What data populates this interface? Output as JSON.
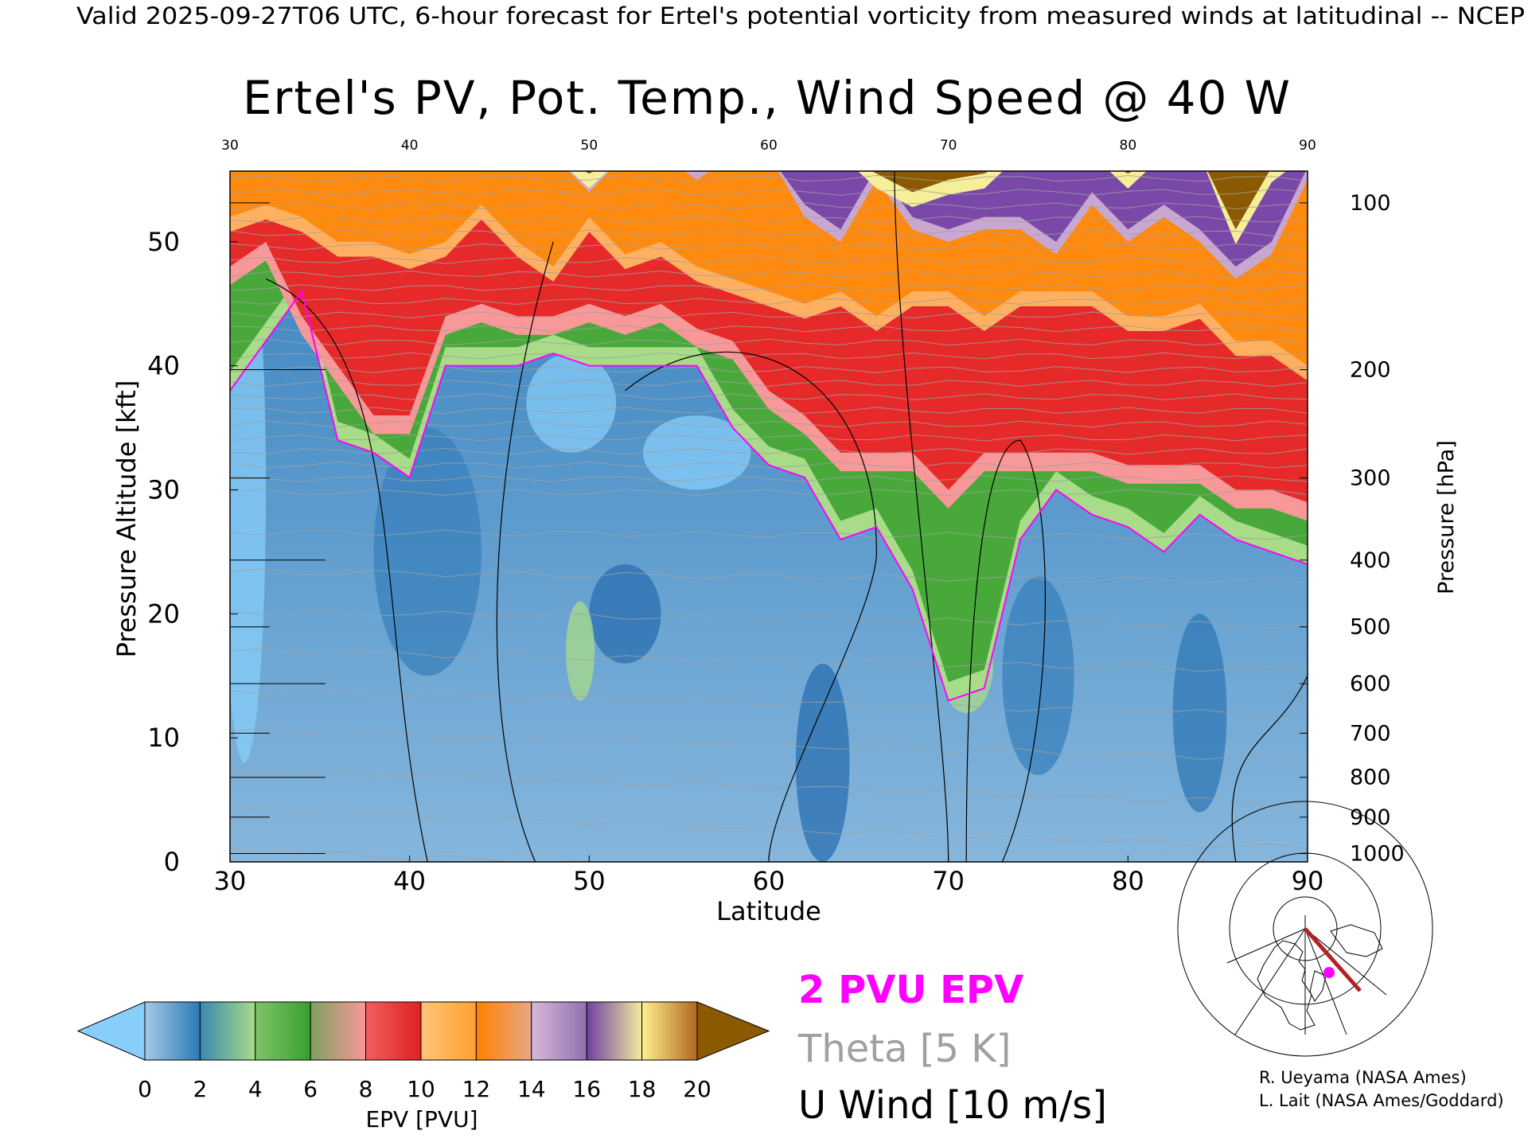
{
  "header": {
    "subtitle": "Valid 2025-09-27T06 UTC, 6-hour forecast for Ertel's potential vorticity from measured winds at latitudinal -- NCEP",
    "title": "Ertel's PV, Pot. Temp., Wind Speed @ 40 W"
  },
  "chart_data": {
    "type": "heatmap",
    "title": "Ertel's PV, Pot. Temp., Wind Speed @ 40 W",
    "xlabel": "Latitude",
    "ylabel": "Pressure Altitude [kft]",
    "y2label": "Pressure [hPa]",
    "xlim": [
      30,
      90
    ],
    "ylim": [
      0,
      55.7
    ],
    "xticks": [
      "30",
      "40",
      "50",
      "60",
      "70",
      "80",
      "90"
    ],
    "yticks": [
      "0",
      "10",
      "20",
      "30",
      "40",
      "50"
    ],
    "y2ticks": [
      "100",
      "200",
      "300",
      "400",
      "500",
      "600",
      "700",
      "800",
      "900",
      "1000"
    ],
    "colorbar": {
      "label": "EPV [PVU]",
      "ticks": [
        "0",
        "2",
        "4",
        "6",
        "8",
        "10",
        "12",
        "14",
        "16",
        "18",
        "20"
      ],
      "segments": [
        [
          "#a6c9e4",
          "#2a7ab8"
        ],
        [
          "#3a88b0",
          "#a8dc88"
        ],
        [
          "#80c468",
          "#38a030"
        ],
        [
          "#7fa060",
          "#f89898"
        ],
        [
          "#f06060",
          "#e02020"
        ],
        [
          "#ffc478",
          "#ffa030"
        ],
        [
          "#ff8000",
          "#e8a888"
        ],
        [
          "#d8b8d8",
          "#9070b0"
        ],
        [
          "#7040a0",
          "#f2eca0"
        ],
        [
          "#fff090",
          "#b06820"
        ]
      ],
      "under_color": "#87cefa",
      "over_color": "#8b5a00"
    },
    "legend": {
      "epv": "2 PVU EPV",
      "theta": "Theta [5 K]",
      "wind": "U Wind [10 m/s]",
      "epv_color": "#ff00ff",
      "theta_color": "#a0a0a0",
      "wind_color": "#000000"
    },
    "latitudes": [
      30,
      32,
      34,
      36,
      38,
      40,
      42,
      44,
      46,
      48,
      50,
      52,
      54,
      56,
      58,
      60,
      62,
      64,
      66,
      68,
      70,
      72,
      74,
      76,
      78,
      80,
      82,
      84,
      86,
      88,
      90
    ],
    "contour_altitudes_kft": {
      "2": [
        38,
        42,
        46,
        34,
        33,
        31,
        40,
        40,
        40,
        41,
        40,
        40,
        40,
        40,
        35,
        32,
        31,
        26,
        27,
        22,
        13,
        14,
        26,
        30,
        28,
        27,
        25,
        28,
        26,
        25,
        24
      ],
      "6": [
        48,
        50,
        44,
        40,
        36,
        36,
        44,
        45,
        44,
        44,
        45,
        44,
        45,
        43,
        42,
        38,
        36,
        33,
        33,
        33,
        30,
        33,
        33,
        33,
        33,
        32,
        32,
        32,
        30,
        30,
        29
      ],
      "12": [
        52,
        53,
        52,
        50,
        50,
        49,
        50,
        53,
        50,
        48,
        52,
        49,
        50,
        48,
        47,
        46,
        45,
        46,
        44,
        46,
        46,
        44,
        46,
        46,
        46,
        44,
        44,
        45,
        42,
        42,
        40
      ],
      "16": [
        60,
        60,
        60,
        60,
        60,
        60,
        60,
        60,
        60,
        60,
        55,
        60,
        60,
        56,
        60,
        60,
        53,
        51,
        56,
        52,
        51,
        52,
        52,
        50,
        54,
        51,
        53,
        51,
        48,
        50,
        56
      ],
      "20": [
        60,
        60,
        60,
        60,
        60,
        60,
        60,
        60,
        60,
        60,
        55.5,
        60,
        60,
        60,
        60,
        60,
        60,
        60,
        55.5,
        54,
        55,
        55.5,
        60,
        60,
        60,
        55.5,
        60,
        60,
        51,
        56,
        60
      ]
    }
  },
  "credits": [
    "R. Ueyama (NASA Ames)",
    "L. Lait (NASA Ames/Goddard)"
  ]
}
